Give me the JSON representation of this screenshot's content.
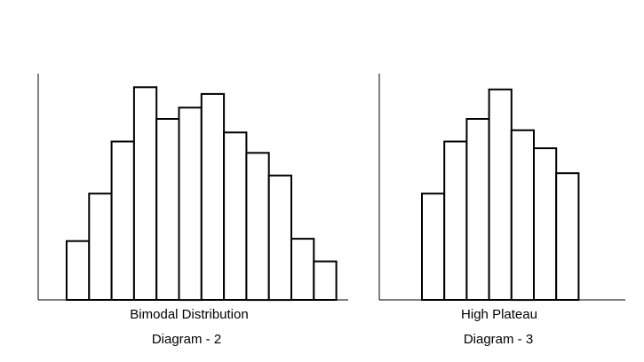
{
  "chart_data": [
    {
      "type": "bar",
      "caption": "Bimodal Distribution",
      "label": "Diagram - 2",
      "values": [
        26,
        47,
        70,
        94,
        80,
        85,
        91,
        74,
        65,
        55,
        27,
        17
      ],
      "ylim": [
        0,
        100
      ],
      "grid": false
    },
    {
      "type": "bar",
      "caption": "High Plateau",
      "label": "Diagram - 3",
      "values": [
        47,
        70,
        80,
        93,
        75,
        67,
        56
      ],
      "ylim": [
        0,
        100
      ],
      "grid": false
    }
  ]
}
